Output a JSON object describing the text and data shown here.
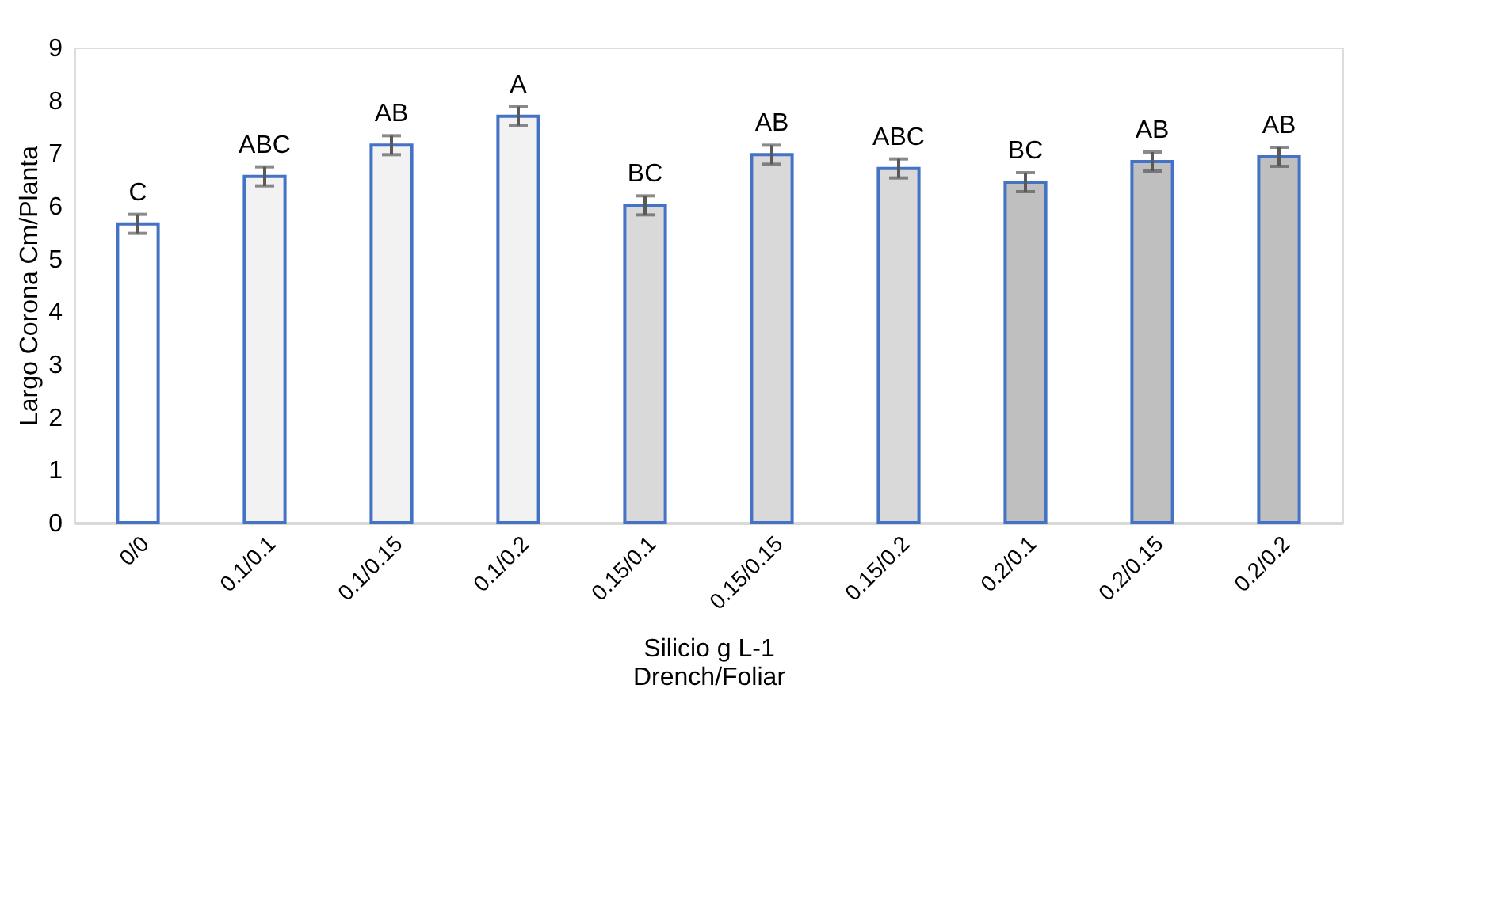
{
  "chart_data": {
    "type": "bar",
    "categories": [
      "0/0",
      "0.1/0.1",
      "0.1/0.15",
      "0.1/0.2",
      "0.15/0.1",
      "0.15/0.15",
      "0.15/0.2",
      "0.2/0.1",
      "0.2/0.15",
      "0.2/0.2"
    ],
    "values": [
      5.66,
      6.56,
      7.15,
      7.7,
      6.01,
      6.97,
      6.71,
      6.45,
      6.84,
      6.93
    ],
    "errors": [
      0.18,
      0.18,
      0.18,
      0.18,
      0.18,
      0.18,
      0.18,
      0.18,
      0.18,
      0.18
    ],
    "colors": [
      "#ffffff",
      "#f2f2f2",
      "#f2f2f2",
      "#f2f2f2",
      "#d9d9d9",
      "#d9d9d9",
      "#d9d9d9",
      "#bfbfbf",
      "#bfbfbf",
      "#bfbfbf"
    ],
    "value_labels": [
      "C",
      "ABC",
      "AB",
      "A",
      "BC",
      "AB",
      "ABC",
      "BC",
      "AB",
      "AB"
    ],
    "xlabel": "Silicio g L-1\nDrench/Foliar",
    "ylabel": "Largo Corona Cm/Planta",
    "ylim": [
      0,
      9
    ],
    "yticks": [
      0,
      1,
      2,
      3,
      4,
      5,
      6,
      7,
      8,
      9
    ],
    "grid": false
  }
}
